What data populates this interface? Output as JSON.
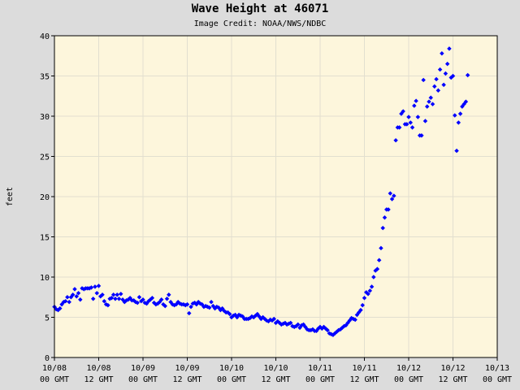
{
  "title": "Wave Height at 46071",
  "credit": "Image Credit: NOAA/NWS/NDBC",
  "colors": {
    "background": "#dcdcdc",
    "plot_area": "#fdf6dc",
    "grid": "#e2dfcf",
    "points": "#0000ff"
  },
  "chart_data": {
    "type": "scatter",
    "title": "Wave Height at 46071",
    "xlabel": "",
    "ylabel": "feet",
    "ylim": [
      0,
      40
    ],
    "yticks": [
      0,
      5,
      10,
      15,
      20,
      25,
      30,
      35,
      40
    ],
    "x_unit": "hours since 10/08 00 GMT",
    "xlim": [
      0,
      120
    ],
    "xticks": [
      {
        "x": 0,
        "date": "10/08",
        "time": "00 GMT"
      },
      {
        "x": 12,
        "date": "10/08",
        "time": "12 GMT"
      },
      {
        "x": 24,
        "date": "10/09",
        "time": "00 GMT"
      },
      {
        "x": 36,
        "date": "10/09",
        "time": "12 GMT"
      },
      {
        "x": 48,
        "date": "10/10",
        "time": "00 GMT"
      },
      {
        "x": 60,
        "date": "10/10",
        "time": "12 GMT"
      },
      {
        "x": 72,
        "date": "10/11",
        "time": "00 GMT"
      },
      {
        "x": 84,
        "date": "10/11",
        "time": "12 GMT"
      },
      {
        "x": 96,
        "date": "10/12",
        "time": "00 GMT"
      },
      {
        "x": 108,
        "date": "10/12",
        "time": "12 GMT"
      },
      {
        "x": 120,
        "date": "10/13",
        "time": "00 GMT"
      }
    ],
    "grid": true,
    "series": [
      {
        "name": "Wave Height",
        "points": [
          [
            0.0,
            6.3
          ],
          [
            0.5,
            6.0
          ],
          [
            1.0,
            5.9
          ],
          [
            1.5,
            6.1
          ],
          [
            2.0,
            6.6
          ],
          [
            2.5,
            6.9
          ],
          [
            3.0,
            7.0
          ],
          [
            3.5,
            7.5
          ],
          [
            4.0,
            6.9
          ],
          [
            4.5,
            7.5
          ],
          [
            5.0,
            7.8
          ],
          [
            5.5,
            8.5
          ],
          [
            6.0,
            7.6
          ],
          [
            6.5,
            8.0
          ],
          [
            7.0,
            7.2
          ],
          [
            7.5,
            8.6
          ],
          [
            8.0,
            8.5
          ],
          [
            8.5,
            8.6
          ],
          [
            9.0,
            8.6
          ],
          [
            9.5,
            8.6
          ],
          [
            10.0,
            8.7
          ],
          [
            10.5,
            7.3
          ],
          [
            11.0,
            8.8
          ],
          [
            11.5,
            8.0
          ],
          [
            12.0,
            8.9
          ],
          [
            12.5,
            7.6
          ],
          [
            13.0,
            7.8
          ],
          [
            13.5,
            7.0
          ],
          [
            14.0,
            6.6
          ],
          [
            14.5,
            6.5
          ],
          [
            15.0,
            7.3
          ],
          [
            15.5,
            7.4
          ],
          [
            16.0,
            7.8
          ],
          [
            16.5,
            7.3
          ],
          [
            17.0,
            7.8
          ],
          [
            17.5,
            7.3
          ],
          [
            18.0,
            7.9
          ],
          [
            18.5,
            7.2
          ],
          [
            19.0,
            6.9
          ],
          [
            19.5,
            7.1
          ],
          [
            20.0,
            7.2
          ],
          [
            20.5,
            7.4
          ],
          [
            21.0,
            7.1
          ],
          [
            21.5,
            7.1
          ],
          [
            22.0,
            6.9
          ],
          [
            22.5,
            6.8
          ],
          [
            23.0,
            7.5
          ],
          [
            23.5,
            7.0
          ],
          [
            24.0,
            7.2
          ],
          [
            24.5,
            6.8
          ],
          [
            25.0,
            6.7
          ],
          [
            25.5,
            7.0
          ],
          [
            26.0,
            7.2
          ],
          [
            26.5,
            7.4
          ],
          [
            27.0,
            6.8
          ],
          [
            27.5,
            6.6
          ],
          [
            28.0,
            6.7
          ],
          [
            28.5,
            6.9
          ],
          [
            29.0,
            7.2
          ],
          [
            29.5,
            6.6
          ],
          [
            30.0,
            6.4
          ],
          [
            30.5,
            7.3
          ],
          [
            31.0,
            7.8
          ],
          [
            31.5,
            6.9
          ],
          [
            32.0,
            6.6
          ],
          [
            32.5,
            6.5
          ],
          [
            33.0,
            6.6
          ],
          [
            33.5,
            6.9
          ],
          [
            34.0,
            6.7
          ],
          [
            34.5,
            6.6
          ],
          [
            35.0,
            6.6
          ],
          [
            35.5,
            6.5
          ],
          [
            36.0,
            6.6
          ],
          [
            36.5,
            5.5
          ],
          [
            37.0,
            6.3
          ],
          [
            37.5,
            6.7
          ],
          [
            38.0,
            6.8
          ],
          [
            38.5,
            6.6
          ],
          [
            39.0,
            6.9
          ],
          [
            39.5,
            6.7
          ],
          [
            40.0,
            6.6
          ],
          [
            40.5,
            6.3
          ],
          [
            41.0,
            6.4
          ],
          [
            41.5,
            6.3
          ],
          [
            42.0,
            6.2
          ],
          [
            42.5,
            6.9
          ],
          [
            43.0,
            6.4
          ],
          [
            43.5,
            6.1
          ],
          [
            44.0,
            6.3
          ],
          [
            44.5,
            6.2
          ],
          [
            45.0,
            5.9
          ],
          [
            45.5,
            6.1
          ],
          [
            46.0,
            5.8
          ],
          [
            46.5,
            5.6
          ],
          [
            47.0,
            5.6
          ],
          [
            47.5,
            5.4
          ],
          [
            48.0,
            5.0
          ],
          [
            48.5,
            5.2
          ],
          [
            49.0,
            5.3
          ],
          [
            49.5,
            5.0
          ],
          [
            50.0,
            5.3
          ],
          [
            50.5,
            5.2
          ],
          [
            51.0,
            5.1
          ],
          [
            51.5,
            4.8
          ],
          [
            52.0,
            4.8
          ],
          [
            52.5,
            4.8
          ],
          [
            53.0,
            4.9
          ],
          [
            53.5,
            5.1
          ],
          [
            54.0,
            5.0
          ],
          [
            54.5,
            5.2
          ],
          [
            55.0,
            5.4
          ],
          [
            55.5,
            5.1
          ],
          [
            56.0,
            4.8
          ],
          [
            56.5,
            5.0
          ],
          [
            57.0,
            4.8
          ],
          [
            57.5,
            4.6
          ],
          [
            58.0,
            4.5
          ],
          [
            58.5,
            4.7
          ],
          [
            59.0,
            4.6
          ],
          [
            59.5,
            4.8
          ],
          [
            60.0,
            4.3
          ],
          [
            60.5,
            4.5
          ],
          [
            61.0,
            4.3
          ],
          [
            61.5,
            4.1
          ],
          [
            62.0,
            4.2
          ],
          [
            62.5,
            4.3
          ],
          [
            63.0,
            4.1
          ],
          [
            63.5,
            4.2
          ],
          [
            64.0,
            4.3
          ],
          [
            64.5,
            3.9
          ],
          [
            65.0,
            3.8
          ],
          [
            65.5,
            3.9
          ],
          [
            66.0,
            4.1
          ],
          [
            66.5,
            3.7
          ],
          [
            67.0,
            4.0
          ],
          [
            67.5,
            4.1
          ],
          [
            68.0,
            3.8
          ],
          [
            68.5,
            3.5
          ],
          [
            69.0,
            3.4
          ],
          [
            69.5,
            3.4
          ],
          [
            70.0,
            3.5
          ],
          [
            70.5,
            3.3
          ],
          [
            71.0,
            3.3
          ],
          [
            71.5,
            3.6
          ],
          [
            72.0,
            3.8
          ],
          [
            72.5,
            3.6
          ],
          [
            73.0,
            3.8
          ],
          [
            73.5,
            3.6
          ],
          [
            74.0,
            3.4
          ],
          [
            74.5,
            3.0
          ],
          [
            75.0,
            2.9
          ],
          [
            75.5,
            2.8
          ],
          [
            76.0,
            3.0
          ],
          [
            76.5,
            3.2
          ],
          [
            77.0,
            3.4
          ],
          [
            77.5,
            3.5
          ],
          [
            78.0,
            3.7
          ],
          [
            78.5,
            3.9
          ],
          [
            79.0,
            4.0
          ],
          [
            79.5,
            4.3
          ],
          [
            80.0,
            4.6
          ],
          [
            80.5,
            4.9
          ],
          [
            81.0,
            4.8
          ],
          [
            81.5,
            4.7
          ],
          [
            82.0,
            5.3
          ],
          [
            82.5,
            5.6
          ],
          [
            83.0,
            5.9
          ],
          [
            83.5,
            6.5
          ],
          [
            84.0,
            7.4
          ],
          [
            84.5,
            8.1
          ],
          [
            85.0,
            7.9
          ],
          [
            85.5,
            8.3
          ],
          [
            86.0,
            8.8
          ],
          [
            86.5,
            10.0
          ],
          [
            87.0,
            10.8
          ],
          [
            87.5,
            11.0
          ],
          [
            88.0,
            12.1
          ],
          [
            88.5,
            13.6
          ],
          [
            89.0,
            16.1
          ],
          [
            89.5,
            17.4
          ],
          [
            90.0,
            18.4
          ],
          [
            90.5,
            18.4
          ],
          [
            91.0,
            20.4
          ],
          [
            91.5,
            19.7
          ],
          [
            92.0,
            20.1
          ],
          [
            92.5,
            27.0
          ],
          [
            93.0,
            28.6
          ],
          [
            93.5,
            28.6
          ],
          [
            94.0,
            30.3
          ],
          [
            94.5,
            30.6
          ],
          [
            95.0,
            29.0
          ],
          [
            95.5,
            29.0
          ],
          [
            96.0,
            29.9
          ],
          [
            96.5,
            29.2
          ],
          [
            97.0,
            28.6
          ],
          [
            97.5,
            31.3
          ],
          [
            98.0,
            31.9
          ],
          [
            98.5,
            29.9
          ],
          [
            99.0,
            27.6
          ],
          [
            99.5,
            27.6
          ],
          [
            100.0,
            34.5
          ],
          [
            100.5,
            29.4
          ],
          [
            101.0,
            31.2
          ],
          [
            101.5,
            31.8
          ],
          [
            102.0,
            32.3
          ],
          [
            102.5,
            31.5
          ],
          [
            103.0,
            33.7
          ],
          [
            103.5,
            34.6
          ],
          [
            104.0,
            33.2
          ],
          [
            104.5,
            35.8
          ],
          [
            105.0,
            37.8
          ],
          [
            105.5,
            33.9
          ],
          [
            106.0,
            35.3
          ],
          [
            106.5,
            36.5
          ],
          [
            107.0,
            38.4
          ],
          [
            107.5,
            34.8
          ],
          [
            108.0,
            35.0
          ],
          [
            108.5,
            30.1
          ],
          [
            109.0,
            25.7
          ],
          [
            109.5,
            29.2
          ],
          [
            110.0,
            30.3
          ],
          [
            110.5,
            31.2
          ],
          [
            111.0,
            31.5
          ],
          [
            111.5,
            31.8
          ],
          [
            112.0,
            35.1
          ]
        ]
      }
    ]
  }
}
